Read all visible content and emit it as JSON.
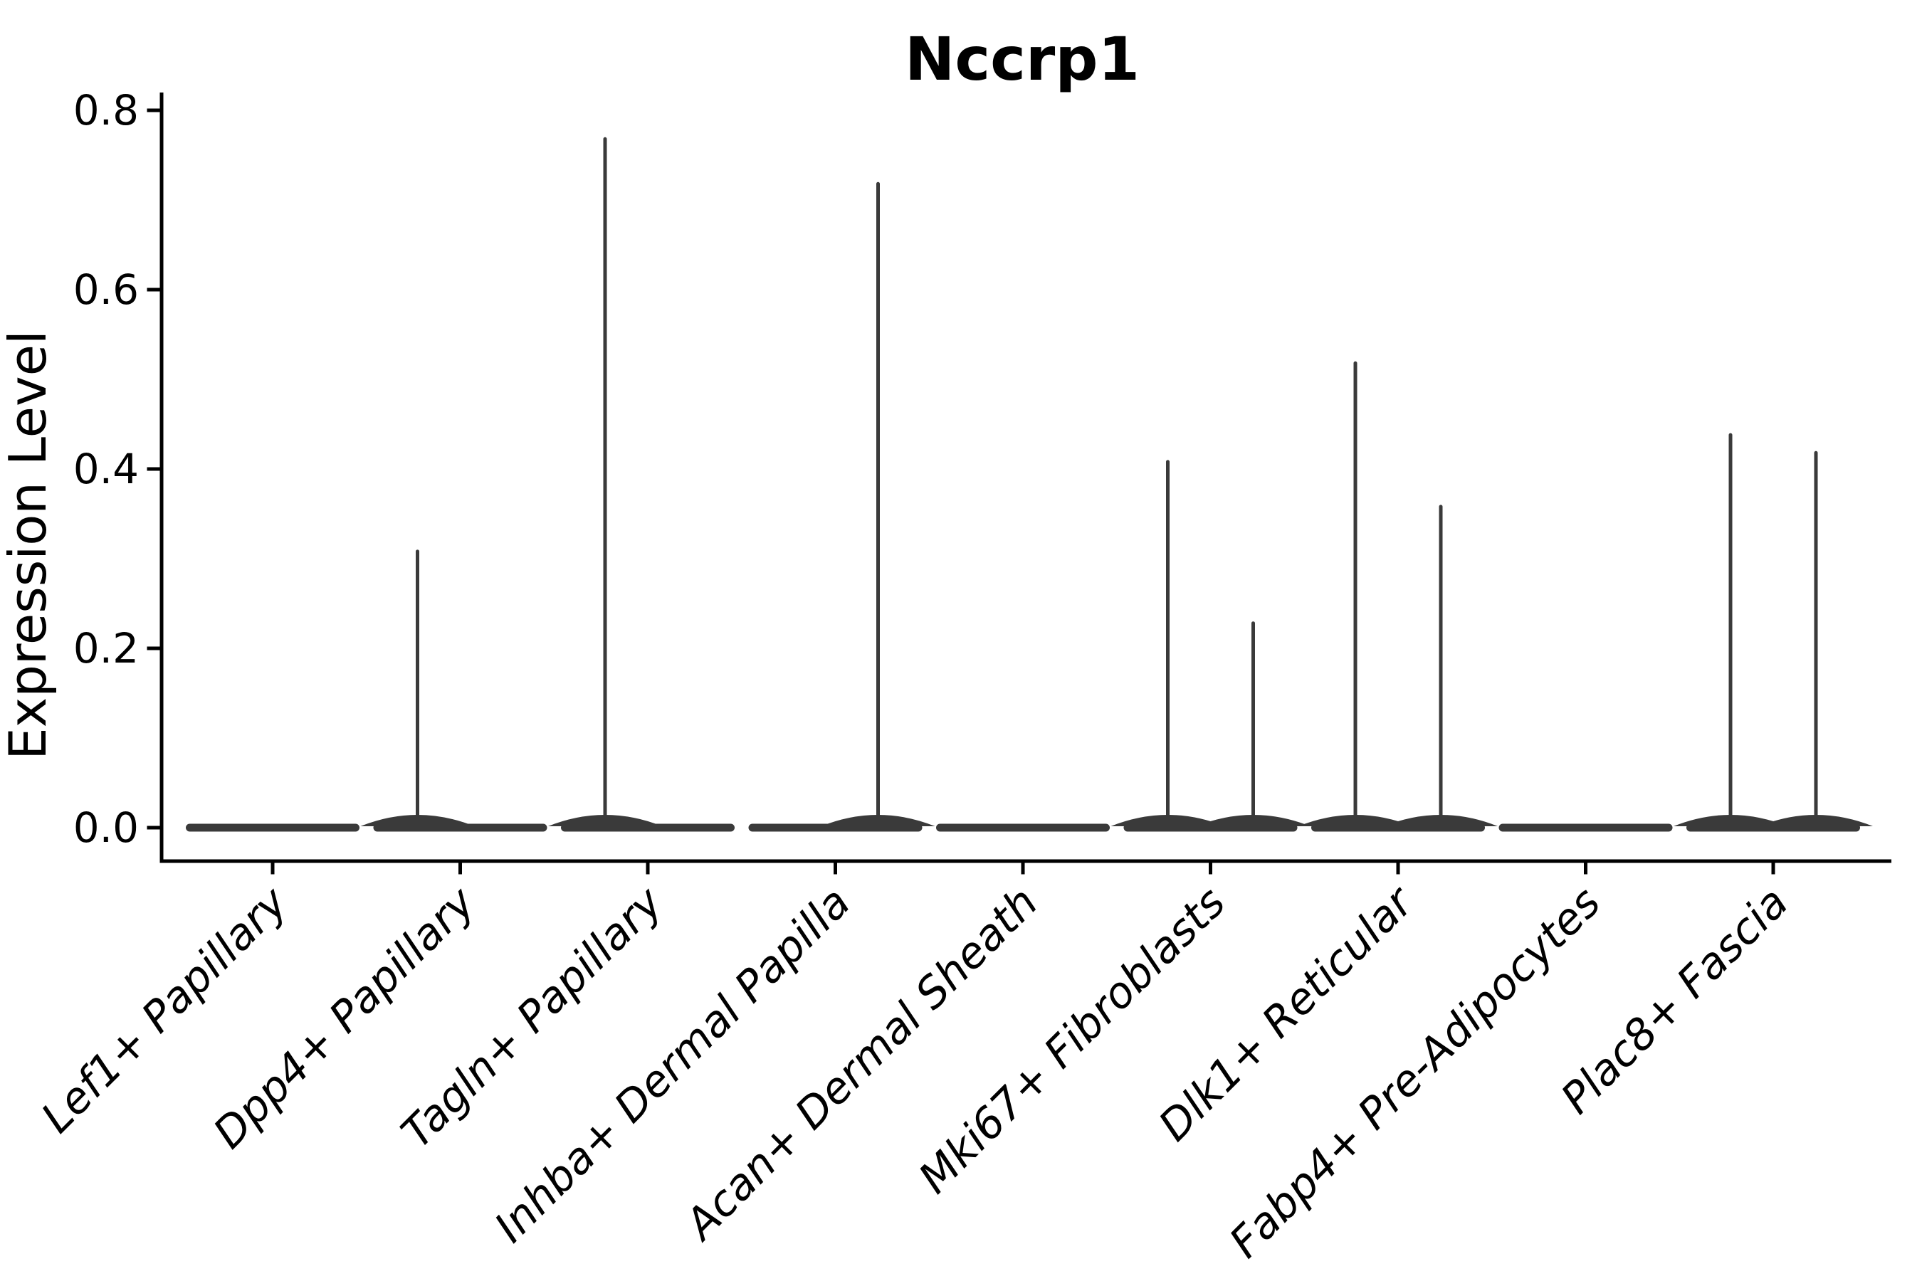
{
  "chart_data": {
    "type": "violin",
    "title": "Nccrp1",
    "ylabel": "Expression Level",
    "xlabel": "",
    "ylim": [
      0,
      0.8
    ],
    "ytick_labels": [
      "0.0",
      "0.2",
      "0.4",
      "0.6",
      "0.8"
    ],
    "categories": [
      "Lef1+ Papillary",
      "Dpp4+ Papillary",
      "Tagln+ Papillary",
      "Inhba+ Dermal Papilla",
      "Acan+ Dermal Sheath",
      "Mki67+ Fibroblasts",
      "Dlk1+ Reticular",
      "Fabp4+ Pre-Adipocytes",
      "Plac8+ Fascia"
    ],
    "series": [
      {
        "name": "left-violin",
        "max_expression": [
          0,
          0.31,
          0.77,
          0,
          0,
          0.41,
          0.52,
          0,
          0.44
        ]
      },
      {
        "name": "right-violin",
        "max_expression": [
          0,
          0,
          0,
          0.72,
          0,
          0.23,
          0.36,
          0,
          0.42
        ]
      }
    ],
    "baseline_value": 0.0,
    "violin_color": "#3a3a3a",
    "axis_color": "#000000",
    "legend": "none",
    "grid": "off"
  }
}
